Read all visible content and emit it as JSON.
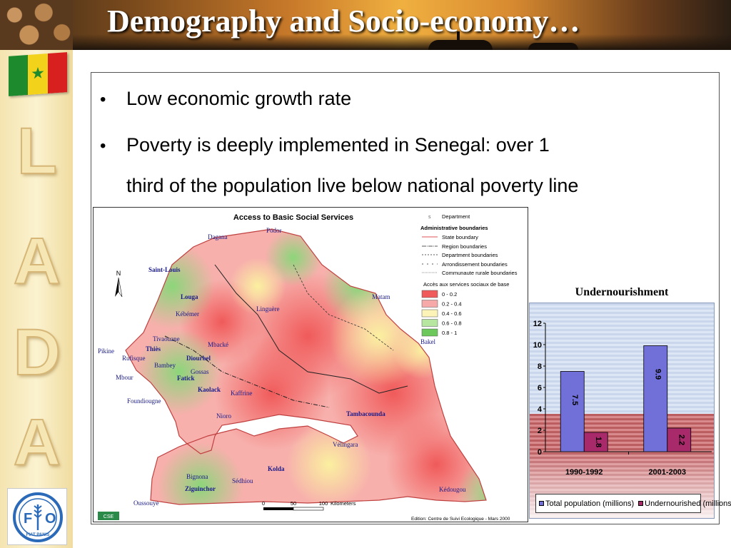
{
  "slide": {
    "title": "Demography and Socio-economy…",
    "side_letters": [
      "L",
      "A",
      "D",
      "A"
    ],
    "bullets": [
      "Low economic growth rate",
      "Poverty is deeply implemented in Senegal: over 1",
      "third of the population live below national poverty line"
    ],
    "fao_logo_text": "FIAT PANIS"
  },
  "map": {
    "title": "Access to Basic Social Services",
    "legend": {
      "department": "Department",
      "admin_header": "Administrative boundaries",
      "state": "State boundary",
      "region": "Region boundaries",
      "department_b": "Department boundaries",
      "arrondissement": "Arrondissement boundaries",
      "communaute": "Communaute rurale boundaries",
      "access_header": "Accès aux services sociaux de base",
      "classes": [
        {
          "label": "0 - 0.2",
          "color": "#f05a5a"
        },
        {
          "label": "0.2 - 0.4",
          "color": "#f7a8a8"
        },
        {
          "label": "0.4 - 0.6",
          "color": "#fbf3b8"
        },
        {
          "label": "0.6 - 0.8",
          "color": "#b6e6a0"
        },
        {
          "label": "0.8 - 1",
          "color": "#6cc85a"
        }
      ]
    },
    "north": "N",
    "scale": [
      "0",
      "50",
      "100",
      "Kilometers"
    ],
    "edition": "Edition: Centre de Suivi Ecologique - Mars 2000",
    "places": [
      "Podor",
      "Dagana",
      "Saint-Louis",
      "Louga",
      "Kébémer",
      "Linguère",
      "Matam",
      "Tivaouane",
      "Thiès",
      "Pikine",
      "Rufisque",
      "Bambey",
      "Mbacké",
      "Diourbel",
      "Gossas",
      "Fatick",
      "Mbour",
      "Kaolack",
      "Kaffrine",
      "Foundiougne",
      "Nioro",
      "Tambacounda",
      "Bakel",
      "Vélingara",
      "Kolda",
      "Bignona",
      "Sédhiou",
      "Ziguinchor",
      "Oussouye",
      "Kédougou"
    ]
  },
  "chart_data": {
    "type": "bar",
    "title": "Undernourishment",
    "categories": [
      "1990-1992",
      "2001-2003"
    ],
    "series": [
      {
        "name": "Total population (millions)",
        "values": [
          7.5,
          9.9
        ],
        "color": "#7070d8"
      },
      {
        "name": "Undernourished (millions)",
        "values": [
          1.8,
          2.2
        ],
        "color": "#a82a6a"
      }
    ],
    "y_ticks": [
      "0",
      "2",
      "4",
      "6",
      "8",
      "10",
      "12"
    ],
    "ylim": [
      0,
      12
    ],
    "legend_position": "bottom",
    "grid": false
  }
}
